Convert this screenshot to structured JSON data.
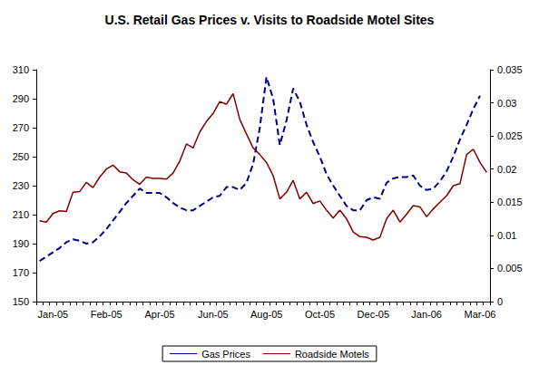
{
  "chart_data": {
    "type": "line",
    "title": "U.S. Retail Gas Prices v. Visits to Roadside Motel Sites",
    "categories": [
      null,
      null,
      "Jan-05",
      null,
      null,
      null,
      null,
      null,
      null,
      null,
      "Feb-05",
      null,
      null,
      null,
      null,
      null,
      null,
      null,
      "Apr-05",
      null,
      null,
      null,
      null,
      null,
      null,
      null,
      "Jun-05",
      null,
      null,
      null,
      null,
      null,
      null,
      null,
      "Aug-05",
      null,
      null,
      null,
      null,
      null,
      null,
      null,
      "Oct-05",
      null,
      null,
      null,
      null,
      null,
      null,
      null,
      "Dec-05",
      null,
      null,
      null,
      null,
      null,
      null,
      null,
      "Jan-06",
      null,
      null,
      null,
      null,
      null,
      null,
      null,
      "Mar-06",
      null
    ],
    "series": [
      {
        "name": "Gas Prices",
        "color": "#000080",
        "line_style": "dashed",
        "values": [
          178,
          181,
          184,
          187,
          191,
          193,
          192,
          190,
          191,
          195,
          200,
          206,
          212,
          218,
          223,
          228,
          225,
          225,
          225,
          222,
          218,
          215,
          213,
          213,
          216,
          219,
          222,
          223,
          229,
          229,
          227,
          232,
          245,
          270,
          305,
          290,
          258,
          275,
          297,
          288,
          272,
          260,
          250,
          238,
          230,
          223,
          216,
          213,
          213,
          220,
          222,
          221,
          232,
          235,
          236,
          236,
          237,
          230,
          227,
          228,
          233,
          240,
          250,
          262,
          272,
          283,
          292,
          null
        ]
      },
      {
        "name": "Roadside Motels",
        "color": "#800000",
        "line_style": "solid",
        "axis": "y2",
        "values": [
          0.0122,
          0.012,
          0.0133,
          0.0137,
          0.0136,
          0.0165,
          0.0166,
          0.018,
          0.0172,
          0.0188,
          0.02,
          0.0206,
          0.0196,
          0.0194,
          0.0184,
          0.0177,
          0.0188,
          0.0186,
          0.0186,
          0.0185,
          0.0194,
          0.0212,
          0.0238,
          0.0232,
          0.0256,
          0.0272,
          0.0284,
          0.0302,
          0.0298,
          0.0314,
          0.0275,
          0.0253,
          0.0232,
          0.0222,
          0.021,
          0.019,
          0.0155,
          0.0165,
          0.0183,
          0.0155,
          0.0165,
          0.0148,
          0.0152,
          0.0138,
          0.0126,
          0.0138,
          0.0125,
          0.0105,
          0.0098,
          0.0097,
          0.0093,
          0.0097,
          0.0125,
          0.0138,
          0.012,
          0.0132,
          0.0145,
          0.0143,
          0.0128,
          0.014,
          0.015,
          0.016,
          0.0175,
          0.0178,
          0.0222,
          0.023,
          0.021,
          0.0195
        ]
      }
    ],
    "ylim": [
      150,
      310
    ],
    "yticks": [
      150,
      170,
      190,
      210,
      230,
      250,
      270,
      290,
      310
    ],
    "y2lim": [
      0,
      0.035
    ],
    "y2ticks": [
      0,
      0.005,
      0.01,
      0.015,
      0.02,
      0.025,
      0.03,
      0.035
    ],
    "grid": false,
    "legend": "bottom"
  }
}
